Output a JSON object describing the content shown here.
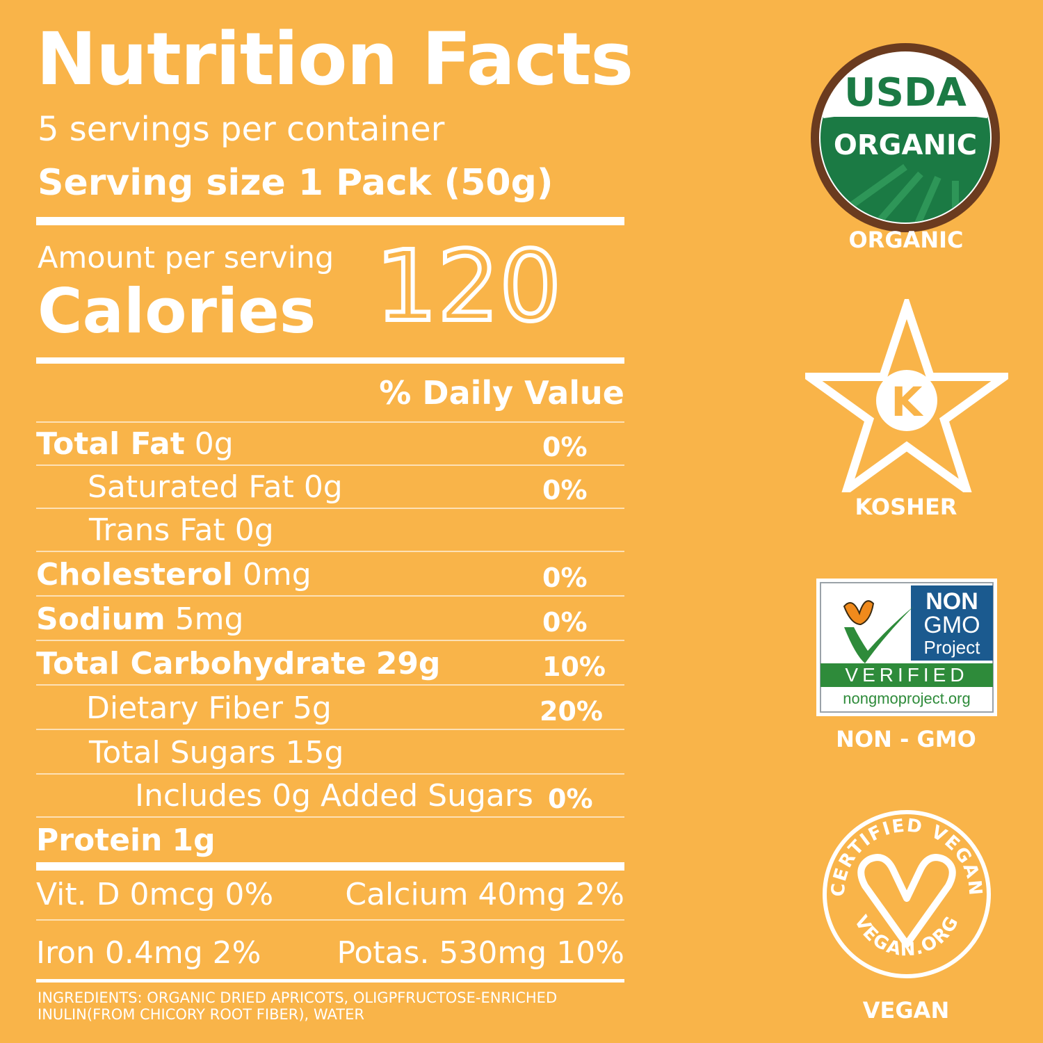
{
  "label": {
    "title": "Nutrition Facts",
    "servings_per_container": "5 servings per container",
    "serving_size": "Serving size 1 Pack (50g)",
    "amount_per_serving": "Amount per serving",
    "calories_label": "Calories",
    "calories_value": "120",
    "daily_value_header": "% Daily Value",
    "rows": [
      {
        "name": "Total Fat",
        "amount": "0g",
        "dv": "0%"
      },
      {
        "name": "Saturated Fat",
        "amount": "0g",
        "dv": "0%"
      },
      {
        "name": "Trans Fat",
        "amount": "0g",
        "dv": ""
      },
      {
        "name": "Cholesterol",
        "amount": "0mg",
        "dv": "0%"
      },
      {
        "name": "Sodium",
        "amount": "5mg",
        "dv": "0%"
      },
      {
        "name": "Total Carbohydrate",
        "amount": "29g",
        "dv": "10%"
      },
      {
        "name": "Dietary Fiber",
        "amount": "5g",
        "dv": "20%"
      },
      {
        "name": "Total Sugars",
        "amount": "15g",
        "dv": ""
      },
      {
        "name": "Includes 0g Added Sugars",
        "amount": "",
        "dv": "0%"
      },
      {
        "name": "Protein",
        "amount": "1g",
        "dv": ""
      }
    ],
    "vitamins": {
      "vit_d": "Vit. D 0mcg 0%",
      "calcium": "Calcium 40mg 2%",
      "iron": "Iron 0.4mg 2%",
      "potassium": "Potas. 530mg 10%"
    },
    "ingredients": "INGREDIENTS: ORGANIC DRIED APRICOTS, OLIGPFRUCTOSE-ENRICHED INULIN(FROM CHICORY ROOT FIBER), WATER"
  },
  "badges": {
    "usda": {
      "top": "USDA",
      "bottom": "ORGANIC",
      "label": "ORGANIC"
    },
    "kosher": {
      "letter": "K",
      "label": "KOSHER"
    },
    "non_gmo": {
      "line1": "NON",
      "line2": "GMO",
      "line3": "Project",
      "verified": "VERIFIED",
      "url": "nongmoproject.org",
      "label": "NON - GMO"
    },
    "vegan": {
      "arc_top": "CERTIFIED VEGAN",
      "arc_bottom": "VEGAN.ORG",
      "label": "VEGAN"
    }
  },
  "colors": {
    "background": "#F9B449",
    "usda_green": "#1B7A44",
    "usda_brown": "#6B3B1F",
    "ngm_blue": "#1B5A8F",
    "ngm_green": "#2E8B3A",
    "butterfly_orange": "#F08A1C"
  }
}
